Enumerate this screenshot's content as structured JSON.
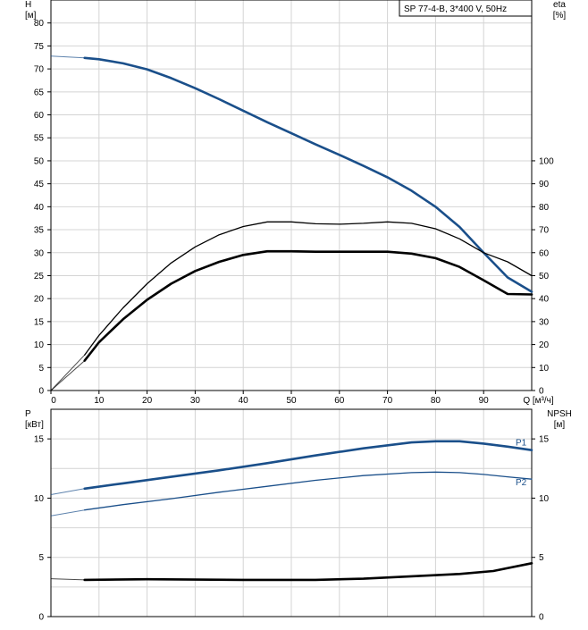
{
  "chart_data": [
    {
      "type": "line",
      "title": "SP 77-4-B, 3*400 V, 50Hz",
      "xlabel": "Q [м³/ч]",
      "x_ticks": [
        0,
        10,
        20,
        30,
        40,
        50,
        60,
        70,
        80,
        90
      ],
      "xlim": [
        0,
        100
      ],
      "ylabel_left": [
        "H",
        "[м]"
      ],
      "ylabel_right": [
        "eta",
        "[%]"
      ],
      "ylim_left": [
        0,
        85
      ],
      "ylim_right": [
        0,
        170
      ],
      "y_ticks_left": [
        0,
        5,
        10,
        15,
        20,
        25,
        30,
        35,
        40,
        45,
        50,
        55,
        60,
        65,
        70,
        75,
        80
      ],
      "y_ticks_right": [
        0,
        10,
        20,
        30,
        40,
        50,
        60,
        70,
        80,
        90,
        100
      ],
      "grid": true,
      "series": [
        {
          "color": "#1a4f8a",
          "axis": "left",
          "line": "thick",
          "points": [
            [
              7,
              72.4
            ],
            [
              10,
              72.1
            ],
            [
              15,
              71.2
            ],
            [
              20,
              69.9
            ],
            [
              25,
              68.0
            ],
            [
              30,
              65.8
            ],
            [
              35,
              63.4
            ],
            [
              40,
              60.9
            ],
            [
              45,
              58.4
            ],
            [
              50,
              56.0
            ],
            [
              55,
              53.6
            ],
            [
              60,
              51.3
            ],
            [
              65,
              48.9
            ],
            [
              70,
              46.4
            ],
            [
              75,
              43.5
            ],
            [
              80,
              40.0
            ],
            [
              85,
              35.6
            ],
            [
              90,
              30.0
            ],
            [
              95,
              24.6
            ],
            [
              100,
              21.5
            ]
          ]
        },
        {
          "color": "#000000",
          "axis": "right",
          "line": "thin",
          "points": [
            [
              7,
              15.5
            ],
            [
              10,
              24
            ],
            [
              15,
              36
            ],
            [
              20,
              46.5
            ],
            [
              25,
              55.5
            ],
            [
              30,
              62.5
            ],
            [
              35,
              67.8
            ],
            [
              40,
              71.4
            ],
            [
              45,
              73.4
            ],
            [
              50,
              73.4
            ],
            [
              55,
              72.6
            ],
            [
              60,
              72.4
            ],
            [
              65,
              72.8
            ],
            [
              70,
              73.4
            ],
            [
              75,
              72.8
            ],
            [
              80,
              70.4
            ],
            [
              85,
              66
            ],
            [
              90,
              60
            ],
            [
              95,
              56
            ],
            [
              100,
              50
            ]
          ]
        },
        {
          "color": "#000000",
          "axis": "right",
          "line": "thick",
          "points": [
            [
              7,
              13
            ],
            [
              10,
              21
            ],
            [
              15,
              31
            ],
            [
              20,
              39.5
            ],
            [
              25,
              46.5
            ],
            [
              30,
              52
            ],
            [
              35,
              56
            ],
            [
              40,
              59
            ],
            [
              45,
              60.6
            ],
            [
              50,
              60.6
            ],
            [
              55,
              60.4
            ],
            [
              60,
              60.4
            ],
            [
              65,
              60.4
            ],
            [
              70,
              60.4
            ],
            [
              75,
              59.6
            ],
            [
              80,
              57.6
            ],
            [
              85,
              53.8
            ],
            [
              90,
              48
            ],
            [
              95,
              42
            ],
            [
              100,
              41.8
            ]
          ]
        }
      ],
      "extrapolated": [
        {
          "color": "#1a4f8a",
          "axis": "left",
          "points": [
            [
              0,
              72.8
            ],
            [
              7,
              72.4
            ]
          ]
        },
        {
          "color": "#000000",
          "axis": "right",
          "points": [
            [
              0,
              0
            ],
            [
              7,
              15.5
            ]
          ]
        },
        {
          "color": "#000000",
          "axis": "right",
          "points": [
            [
              0,
              0
            ],
            [
              7,
              13
            ]
          ]
        }
      ]
    },
    {
      "type": "line",
      "ylabel_left": [
        "P",
        "[кВт]"
      ],
      "ylabel_right": [
        "NPSH",
        "[м]"
      ],
      "xlim": [
        0,
        100
      ],
      "ylim_left": [
        0,
        17.5
      ],
      "ylim_right": [
        0,
        17.5
      ],
      "y_ticks_left": [
        0,
        5,
        10,
        15
      ],
      "y_ticks_right": [
        0,
        5,
        10,
        15
      ],
      "grid": true,
      "series": [
        {
          "name": "P1",
          "color": "#1a4f8a",
          "axis": "left",
          "line": "thick",
          "points": [
            [
              7,
              10.8
            ],
            [
              15,
              11.25
            ],
            [
              25,
              11.8
            ],
            [
              35,
              12.35
            ],
            [
              45,
              12.95
            ],
            [
              55,
              13.6
            ],
            [
              65,
              14.2
            ],
            [
              75,
              14.7
            ],
            [
              80,
              14.8
            ],
            [
              85,
              14.8
            ],
            [
              90,
              14.6
            ],
            [
              95,
              14.35
            ],
            [
              100,
              14.05
            ]
          ]
        },
        {
          "name": "P2",
          "color": "#1a4f8a",
          "axis": "left",
          "line": "thin",
          "points": [
            [
              7,
              9.0
            ],
            [
              15,
              9.45
            ],
            [
              25,
              9.95
            ],
            [
              35,
              10.5
            ],
            [
              45,
              11.0
            ],
            [
              55,
              11.5
            ],
            [
              65,
              11.9
            ],
            [
              75,
              12.15
            ],
            [
              80,
              12.2
            ],
            [
              85,
              12.15
            ],
            [
              90,
              12.0
            ],
            [
              95,
              11.8
            ],
            [
              100,
              11.6
            ]
          ]
        },
        {
          "color": "#000000",
          "axis": "right",
          "line": "thick",
          "points": [
            [
              7,
              3.1
            ],
            [
              20,
              3.15
            ],
            [
              40,
              3.1
            ],
            [
              55,
              3.1
            ],
            [
              65,
              3.2
            ],
            [
              75,
              3.4
            ],
            [
              85,
              3.6
            ],
            [
              92,
              3.85
            ],
            [
              100,
              4.5
            ]
          ]
        }
      ],
      "extrapolated": [
        {
          "color": "#1a4f8a",
          "axis": "left",
          "points": [
            [
              0,
              10.3
            ],
            [
              7,
              10.8
            ]
          ]
        },
        {
          "color": "#1a4f8a",
          "axis": "left",
          "points": [
            [
              0,
              8.5
            ],
            [
              7,
              9.0
            ]
          ]
        },
        {
          "color": "#000000",
          "axis": "right",
          "points": [
            [
              0,
              3.2
            ],
            [
              7,
              3.1
            ]
          ]
        }
      ]
    }
  ]
}
